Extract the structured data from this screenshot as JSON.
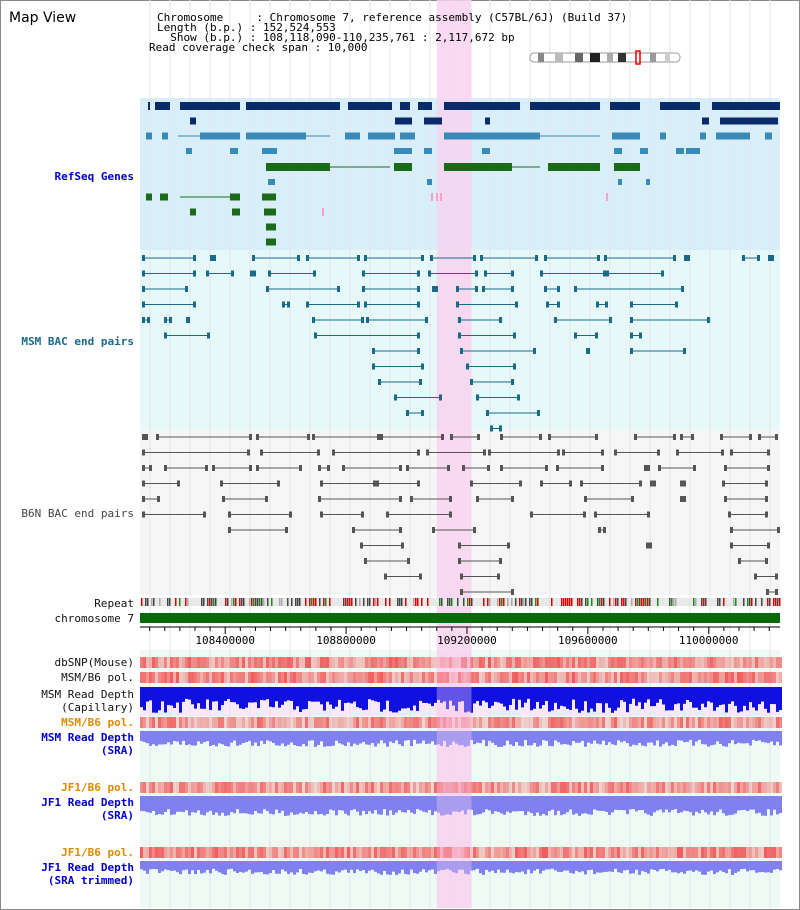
{
  "view": {
    "title": "Map View"
  },
  "header": {
    "line1": "Chromosome     : Chromosome 7, reference assembly (C57BL/6J) (Build 37)",
    "line2": "Length (b.p.) : 152,524,553",
    "line3": "  Show (b.p.) : 108,118,090-110,235,761 : 2,117,672 bp",
    "line4": "Read coverage check span : 10,000"
  },
  "tracks": {
    "refseq": "RefSeq Genes",
    "msm_bac": "MSM BAC end pairs",
    "b6n_bac": "B6N BAC end pairs",
    "repeat": "Repeat",
    "chromosome": "chromosome 7",
    "dbsnp": "dbSNP(Mouse)",
    "msm_b6_pol_1": "MSM/B6 pol.",
    "msm_read_depth_cap": "MSM Read Depth\n(Capillary)",
    "msm_b6_pol_2": "MSM/B6 pol.",
    "msm_read_depth_sra": "MSM Read Depth\n(SRA)",
    "jf1_b6_pol_1": "JF1/B6 pol.",
    "jf1_read_depth_sra": "JF1 Read Depth\n(SRA)",
    "jf1_b6_pol_2": "JF1/B6 pol.",
    "jf1_read_depth_trim": "JF1 Read Depth\n(SRA trimmed)"
  },
  "axis": {
    "ticks": [
      "108400000",
      "108800000",
      "109200000",
      "109600000",
      "110000000"
    ],
    "tick_values": [
      108400000,
      108800000,
      109200000,
      109600000,
      110000000
    ],
    "range": [
      108118090,
      110235761
    ]
  },
  "highlight": {
    "start": 109100000,
    "end": 109215000
  },
  "colors": {
    "highlight": "#f8d4f0",
    "refseq_bg": "#d8eef8",
    "bac_bg": "#e6f8f8",
    "gene_dark": "#0a2a6a",
    "gene_mid": "#3a8ab8",
    "gene_green": "#1a6a1a",
    "msm_line": "#1a6a8a",
    "b6n_line": "#555555",
    "chrom": "#0a6a0a",
    "depth_blue": "#1010e0",
    "depth_light": "#8080f0",
    "pol_red": "#f04040"
  }
}
